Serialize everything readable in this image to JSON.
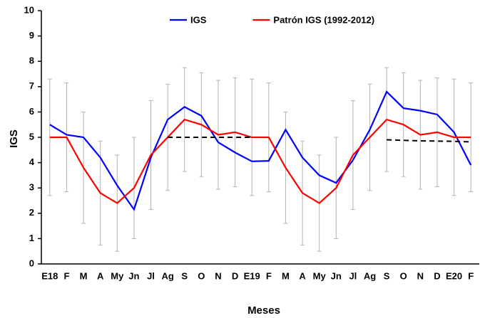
{
  "chart_data": {
    "type": "line",
    "x_label": "Meses",
    "y_label": "IGS",
    "categories": [
      "E18",
      "F",
      "M",
      "A",
      "My",
      "Jn",
      "Jl",
      "Ag",
      "S",
      "O",
      "N",
      "D",
      "E19",
      "F",
      "M",
      "A",
      "My",
      "Jn",
      "Jl",
      "Ag",
      "S",
      "O",
      "N",
      "D",
      "E20",
      "F"
    ],
    "series": [
      {
        "name": "IGS",
        "color": "#0000ff",
        "values": [
          5.5,
          5.1,
          5.0,
          4.2,
          3.1,
          2.15,
          4.2,
          5.7,
          6.2,
          5.85,
          4.8,
          4.4,
          4.05,
          4.07,
          5.3,
          4.2,
          3.5,
          3.2,
          4.1,
          5.3,
          6.8,
          6.15,
          6.05,
          5.9,
          5.2,
          3.9
        ]
      },
      {
        "name": "Patrón IGS (1992-2012)",
        "color": "#ff0000",
        "values": [
          5.0,
          5.0,
          3.8,
          2.8,
          2.4,
          3.0,
          4.3,
          5.0,
          5.7,
          5.5,
          5.1,
          5.2,
          5.0,
          5.0,
          3.8,
          2.8,
          2.4,
          3.0,
          4.3,
          5.0,
          5.7,
          5.5,
          5.1,
          5.2,
          5.0,
          5.0
        ],
        "errors": [
          2.3,
          2.15,
          2.2,
          2.05,
          1.9,
          2.0,
          2.15,
          2.1,
          2.05,
          2.05,
          2.15,
          2.15,
          2.3,
          2.15,
          2.2,
          2.05,
          1.9,
          2.0,
          2.15,
          2.1,
          2.05,
          2.05,
          2.15,
          2.15,
          2.3,
          2.15
        ],
        "error_color": "#b3b3b3"
      },
      {
        "color": "#000000",
        "dashed": true,
        "values": [
          null,
          null,
          null,
          null,
          null,
          null,
          null,
          5.0,
          5.0,
          5.0,
          5.0,
          5.0,
          5.0,
          null,
          null,
          null,
          null,
          null,
          null,
          null,
          null,
          null,
          null,
          null,
          null,
          null
        ]
      },
      {
        "color": "#000000",
        "dashed": true,
        "values": [
          null,
          null,
          null,
          null,
          null,
          null,
          null,
          null,
          null,
          null,
          null,
          null,
          null,
          null,
          null,
          null,
          null,
          null,
          null,
          null,
          4.9,
          4.88,
          4.86,
          4.85,
          4.84,
          4.82
        ]
      }
    ],
    "ylim": [
      0,
      10
    ],
    "yticks": [
      0,
      1,
      2,
      3,
      4,
      5,
      6,
      7,
      8,
      9,
      10
    ],
    "grid": false
  }
}
